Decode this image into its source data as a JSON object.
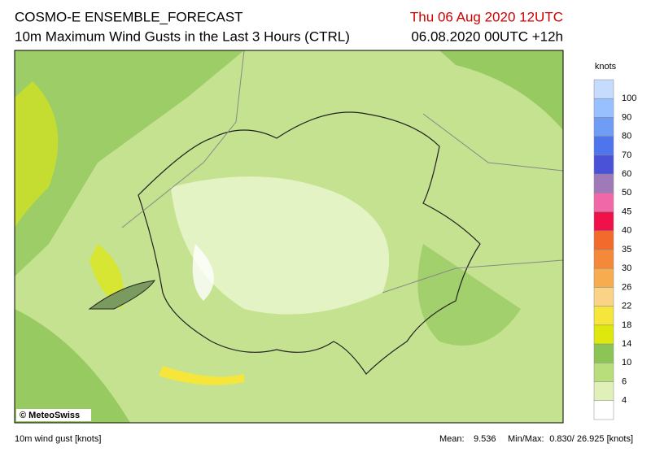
{
  "header": {
    "title": "COSMO-E ENSEMBLE_FORECAST",
    "subtitle": "10m Maximum Wind Gusts in the Last 3 Hours (CTRL)",
    "valid_time": "Thu 06 Aug 2020 12UTC",
    "run_time": "06.08.2020 00UTC +12h"
  },
  "legend": {
    "unit": "knots",
    "labels": [
      "100",
      "90",
      "80",
      "70",
      "60",
      "50",
      "45",
      "40",
      "35",
      "30",
      "26",
      "22",
      "18",
      "14",
      "10",
      "6",
      "4"
    ],
    "colors": [
      "#c6dcff",
      "#98c0ff",
      "#6f9cf5",
      "#4f75ec",
      "#4a52d8",
      "#a07ab8",
      "#f068a8",
      "#f0104a",
      "#f26a2c",
      "#f5893a",
      "#f8ac50",
      "#fbd386",
      "#f6e63c",
      "#dfe80c",
      "#8cc455",
      "#b8de7c",
      "#dff0b8",
      "#ffffff"
    ]
  },
  "map": {
    "copyright": "© MeteoSwiss"
  },
  "footer": {
    "left": "10m wind gust [knots]",
    "mean_label": "Mean:",
    "mean": "9.536",
    "minmax_label": "Min/Max:",
    "minmax": "0.830/ 26.925 [knots]"
  }
}
